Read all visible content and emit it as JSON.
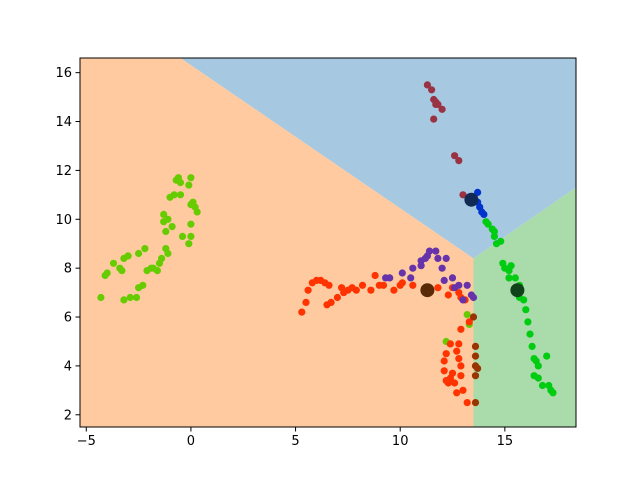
{
  "chart_data": {
    "type": "scatter",
    "title": "",
    "xlabel": "",
    "ylabel": "",
    "xlim": [
      -5.3,
      18.4
    ],
    "ylim": [
      1.5,
      16.6
    ],
    "x_ticks": [
      -5,
      0,
      5,
      10,
      15
    ],
    "y_ticks": [
      2,
      4,
      6,
      8,
      10,
      12,
      14,
      16
    ],
    "grid": false,
    "legend": "none",
    "regions": [
      {
        "color": "#ffcaa0",
        "polygon": [
          [
            -5.3,
            16.6
          ],
          [
            -0.5,
            16.6
          ],
          [
            13.5,
            8.4
          ],
          [
            13.5,
            1.5
          ],
          [
            -5.3,
            1.5
          ]
        ]
      },
      {
        "color": "#a6c8e0",
        "polygon": [
          [
            -0.5,
            16.6
          ],
          [
            18.4,
            16.6
          ],
          [
            18.4,
            11.3
          ],
          [
            13.5,
            8.4
          ]
        ]
      },
      {
        "color": "#aadbaa",
        "polygon": [
          [
            13.5,
            8.4
          ],
          [
            18.4,
            11.3
          ],
          [
            18.4,
            1.5
          ],
          [
            13.5,
            1.5
          ]
        ]
      }
    ],
    "series": [
      {
        "color": "#66cc00",
        "points": [
          [
            -4.3,
            6.8
          ],
          [
            -4.1,
            7.7
          ],
          [
            -4.0,
            7.8
          ],
          [
            -3.7,
            8.2
          ],
          [
            -3.4,
            8.0
          ],
          [
            -3.3,
            7.9
          ],
          [
            -3.2,
            8.4
          ],
          [
            -3.0,
            8.5
          ],
          [
            -3.2,
            6.7
          ],
          [
            -2.9,
            6.8
          ],
          [
            -2.6,
            6.8
          ],
          [
            -2.5,
            8.6
          ],
          [
            -2.5,
            7.2
          ],
          [
            -2.3,
            7.3
          ],
          [
            -2.2,
            8.8
          ],
          [
            -2.1,
            7.9
          ],
          [
            -1.9,
            8.0
          ],
          [
            -1.8,
            8.0
          ],
          [
            -1.6,
            7.9
          ],
          [
            -1.5,
            8.2
          ],
          [
            -1.4,
            8.4
          ],
          [
            -1.2,
            9.5
          ],
          [
            -1.3,
            9.9
          ],
          [
            -1.3,
            10.2
          ],
          [
            -1.1,
            10.0
          ],
          [
            -1.2,
            8.8
          ],
          [
            -1.1,
            8.6
          ],
          [
            -1.0,
            10.9
          ],
          [
            -0.9,
            9.7
          ],
          [
            -0.8,
            11.0
          ],
          [
            -0.7,
            11.6
          ],
          [
            -0.6,
            11.7
          ],
          [
            -0.5,
            11.5
          ],
          [
            -0.5,
            11.0
          ],
          [
            -0.4,
            9.3
          ],
          [
            0.0,
            9.3
          ],
          [
            0.0,
            9.8
          ],
          [
            -0.1,
            11.4
          ],
          [
            0.0,
            11.7
          ],
          [
            0.0,
            10.6
          ],
          [
            0.1,
            10.7
          ],
          [
            0.2,
            10.5
          ],
          [
            0.3,
            10.3
          ],
          [
            -0.1,
            9.0
          ],
          [
            12.2,
            5.0
          ],
          [
            13.2,
            6.1
          ],
          [
            13.3,
            5.7
          ]
        ]
      },
      {
        "color": "#ff3300",
        "points": [
          [
            5.3,
            6.2
          ],
          [
            5.5,
            6.6
          ],
          [
            5.6,
            7.1
          ],
          [
            5.8,
            7.4
          ],
          [
            6.0,
            7.5
          ],
          [
            6.2,
            7.5
          ],
          [
            6.4,
            7.4
          ],
          [
            6.5,
            6.5
          ],
          [
            6.7,
            6.6
          ],
          [
            6.6,
            7.3
          ],
          [
            7.0,
            6.8
          ],
          [
            7.2,
            7.2
          ],
          [
            7.3,
            7.0
          ],
          [
            7.5,
            7.1
          ],
          [
            7.7,
            7.2
          ],
          [
            7.9,
            7.1
          ],
          [
            8.2,
            7.3
          ],
          [
            8.6,
            7.1
          ],
          [
            8.8,
            7.7
          ],
          [
            9.0,
            7.3
          ],
          [
            9.2,
            7.3
          ],
          [
            9.7,
            7.1
          ],
          [
            10.0,
            7.3
          ],
          [
            10.1,
            7.4
          ],
          [
            10.6,
            7.3
          ],
          [
            11.8,
            7.2
          ],
          [
            12.3,
            6.9
          ],
          [
            12.5,
            7.2
          ],
          [
            12.8,
            7.0
          ],
          [
            12.9,
            6.8
          ],
          [
            13.1,
            6.7
          ],
          [
            12.9,
            5.5
          ],
          [
            13.3,
            5.8
          ],
          [
            12.2,
            4.5
          ],
          [
            12.1,
            4.2
          ],
          [
            12.1,
            3.8
          ],
          [
            12.2,
            3.4
          ],
          [
            12.3,
            3.3
          ],
          [
            12.4,
            3.5
          ],
          [
            12.5,
            3.7
          ],
          [
            12.6,
            3.3
          ],
          [
            12.4,
            4.9
          ],
          [
            12.7,
            4.6
          ],
          [
            12.8,
            4.3
          ],
          [
            12.9,
            4.0
          ],
          [
            12.7,
            2.9
          ],
          [
            13.0,
            3.0
          ],
          [
            12.9,
            3.6
          ],
          [
            12.8,
            4.9
          ],
          [
            13.2,
            2.5
          ]
        ]
      },
      {
        "color": "#6633aa",
        "points": [
          [
            9.3,
            7.6
          ],
          [
            9.5,
            7.6
          ],
          [
            10.1,
            7.8
          ],
          [
            10.5,
            7.6
          ],
          [
            10.6,
            8.0
          ],
          [
            11.0,
            8.1
          ],
          [
            11.0,
            8.3
          ],
          [
            11.2,
            8.4
          ],
          [
            11.3,
            8.5
          ],
          [
            11.4,
            8.7
          ],
          [
            11.7,
            8.7
          ],
          [
            11.8,
            8.4
          ],
          [
            12.0,
            8.0
          ],
          [
            12.2,
            8.4
          ],
          [
            12.1,
            7.5
          ],
          [
            12.5,
            7.6
          ],
          [
            12.6,
            7.2
          ],
          [
            12.8,
            7.3
          ],
          [
            13.2,
            7.3
          ],
          [
            13.0,
            6.7
          ],
          [
            13.4,
            6.9
          ],
          [
            13.5,
            6.8
          ]
        ]
      },
      {
        "color": "#993344",
        "points": [
          [
            11.3,
            15.5
          ],
          [
            11.5,
            15.3
          ],
          [
            11.6,
            14.9
          ],
          [
            11.7,
            14.7
          ],
          [
            11.7,
            14.8
          ],
          [
            11.8,
            14.7
          ],
          [
            12.0,
            14.5
          ],
          [
            11.6,
            14.1
          ],
          [
            12.6,
            12.6
          ],
          [
            12.8,
            12.4
          ],
          [
            13.0,
            11.0
          ]
        ]
      },
      {
        "color": "#0033cc",
        "points": [
          [
            13.5,
            10.9
          ],
          [
            13.7,
            11.1
          ],
          [
            13.7,
            10.7
          ],
          [
            13.8,
            10.5
          ],
          [
            13.9,
            10.3
          ],
          [
            14.0,
            10.2
          ]
        ]
      },
      {
        "color": "#00cc11",
        "points": [
          [
            14.1,
            9.9
          ],
          [
            14.2,
            9.8
          ],
          [
            14.4,
            9.6
          ],
          [
            14.5,
            9.5
          ],
          [
            14.5,
            9.3
          ],
          [
            14.6,
            9.0
          ],
          [
            14.8,
            9.1
          ],
          [
            14.9,
            8.2
          ],
          [
            15.0,
            8.0
          ],
          [
            15.2,
            7.9
          ],
          [
            15.3,
            8.1
          ],
          [
            15.2,
            7.6
          ],
          [
            15.5,
            7.6
          ],
          [
            15.7,
            7.3
          ],
          [
            15.7,
            6.8
          ],
          [
            15.9,
            6.7
          ],
          [
            16.0,
            6.3
          ],
          [
            16.1,
            5.8
          ],
          [
            16.2,
            5.3
          ],
          [
            16.3,
            4.8
          ],
          [
            16.4,
            4.3
          ],
          [
            16.5,
            4.2
          ],
          [
            16.6,
            4.0
          ],
          [
            16.4,
            3.6
          ],
          [
            16.6,
            3.5
          ],
          [
            16.8,
            3.2
          ],
          [
            17.0,
            4.4
          ],
          [
            17.1,
            3.2
          ],
          [
            17.2,
            3.0
          ],
          [
            17.3,
            2.9
          ]
        ]
      },
      {
        "color": "#993300",
        "points": [
          [
            13.5,
            6.0
          ],
          [
            13.6,
            4.8
          ],
          [
            13.6,
            4.4
          ],
          [
            13.6,
            4.0
          ],
          [
            13.6,
            3.6
          ],
          [
            13.7,
            3.9
          ],
          [
            13.6,
            2.5
          ]
        ]
      }
    ],
    "centroids": [
      {
        "color": "#112a55",
        "x": 13.4,
        "y": 10.8
      },
      {
        "color": "#10431a",
        "x": 15.6,
        "y": 7.1
      },
      {
        "color": "#5a2a06",
        "x": 11.3,
        "y": 7.1
      }
    ]
  }
}
